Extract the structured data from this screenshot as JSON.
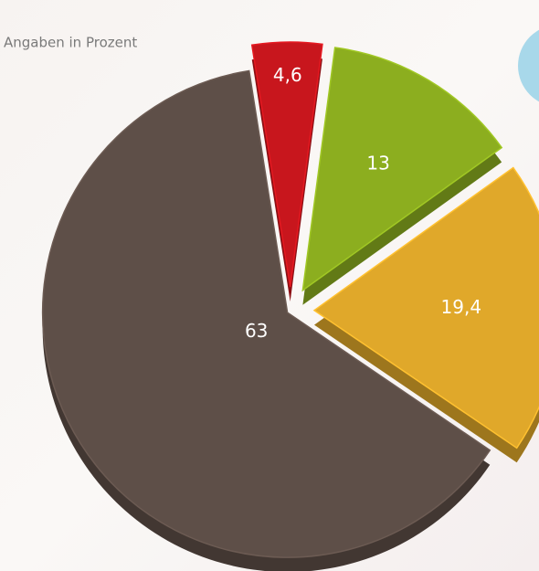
{
  "chart_data": {
    "type": "pie",
    "subtitle": "Angaben in Prozent",
    "values": [
      4.6,
      13,
      19.4,
      63
    ],
    "value_labels": [
      "4,6",
      "13",
      "19,4",
      "63"
    ],
    "colors": [
      "#c8161d",
      "#8cae1f",
      "#e0a82a",
      "#5e4f48"
    ]
  }
}
